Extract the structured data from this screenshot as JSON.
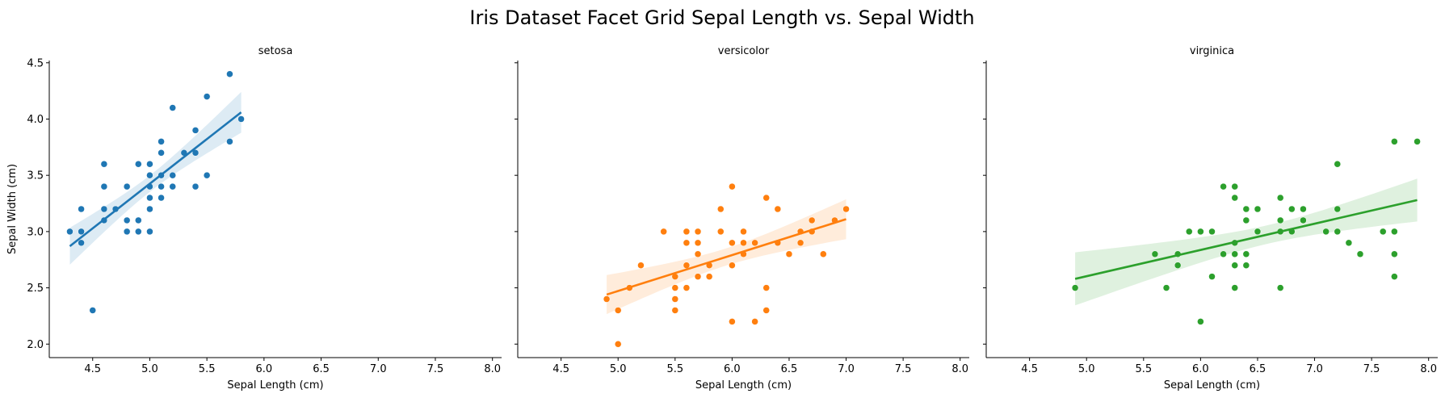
{
  "title": "Iris Dataset Facet Grid Sepal Length vs. Sepal Width",
  "chart_data": {
    "type": "scatter",
    "title": "Iris Dataset Facet Grid Sepal Length vs. Sepal Width",
    "xlabel": "Sepal Length (cm)",
    "ylabel": "Sepal Width (cm)",
    "xlim": [
      4.12,
      8.08
    ],
    "ylim": [
      1.88,
      4.52
    ],
    "x_ticks": [
      "4.5",
      "5.0",
      "5.5",
      "6.0",
      "6.5",
      "7.0",
      "7.5",
      "8.0"
    ],
    "y_ticks": [
      "2.0",
      "2.5",
      "3.0",
      "3.5",
      "4.0",
      "4.5"
    ],
    "grid": false,
    "facets": [
      {
        "name": "setosa",
        "color": "#1f77b4",
        "regression": {
          "x": [
            4.3,
            5.8
          ],
          "y": [
            2.87,
            4.06
          ]
        },
        "points": [
          [
            5.1,
            3.5
          ],
          [
            4.9,
            3.0
          ],
          [
            4.7,
            3.2
          ],
          [
            4.6,
            3.1
          ],
          [
            5.0,
            3.6
          ],
          [
            5.4,
            3.9
          ],
          [
            4.6,
            3.4
          ],
          [
            5.0,
            3.4
          ],
          [
            4.4,
            2.9
          ],
          [
            4.9,
            3.1
          ],
          [
            5.4,
            3.7
          ],
          [
            4.8,
            3.4
          ],
          [
            4.8,
            3.0
          ],
          [
            4.3,
            3.0
          ],
          [
            5.8,
            4.0
          ],
          [
            5.7,
            4.4
          ],
          [
            5.4,
            3.9
          ],
          [
            5.1,
            3.5
          ],
          [
            5.7,
            3.8
          ],
          [
            5.1,
            3.8
          ],
          [
            5.4,
            3.4
          ],
          [
            5.1,
            3.7
          ],
          [
            4.6,
            3.6
          ],
          [
            5.1,
            3.3
          ],
          [
            4.8,
            3.4
          ],
          [
            5.0,
            3.0
          ],
          [
            5.0,
            3.4
          ],
          [
            5.2,
            3.5
          ],
          [
            5.2,
            3.4
          ],
          [
            4.7,
            3.2
          ],
          [
            4.8,
            3.1
          ],
          [
            5.4,
            3.4
          ],
          [
            5.2,
            4.1
          ],
          [
            5.5,
            4.2
          ],
          [
            4.9,
            3.1
          ],
          [
            5.0,
            3.2
          ],
          [
            5.5,
            3.5
          ],
          [
            4.9,
            3.6
          ],
          [
            4.4,
            3.0
          ],
          [
            5.1,
            3.4
          ],
          [
            5.0,
            3.5
          ],
          [
            4.5,
            2.3
          ],
          [
            4.4,
            3.2
          ],
          [
            5.0,
            3.5
          ],
          [
            5.1,
            3.8
          ],
          [
            4.8,
            3.0
          ],
          [
            5.1,
            3.8
          ],
          [
            4.6,
            3.2
          ],
          [
            5.3,
            3.7
          ],
          [
            5.0,
            3.3
          ]
        ]
      },
      {
        "name": "versicolor",
        "color": "#ff7f0e",
        "regression": {
          "x": [
            4.9,
            7.0
          ],
          "y": [
            2.44,
            3.11
          ]
        },
        "points": [
          [
            7.0,
            3.2
          ],
          [
            6.4,
            3.2
          ],
          [
            6.9,
            3.1
          ],
          [
            5.5,
            2.3
          ],
          [
            6.5,
            2.8
          ],
          [
            5.7,
            2.8
          ],
          [
            6.3,
            3.3
          ],
          [
            4.9,
            2.4
          ],
          [
            6.6,
            2.9
          ],
          [
            5.2,
            2.7
          ],
          [
            5.0,
            2.0
          ],
          [
            5.9,
            3.0
          ],
          [
            6.0,
            2.2
          ],
          [
            6.1,
            2.9
          ],
          [
            5.6,
            2.9
          ],
          [
            6.7,
            3.1
          ],
          [
            5.6,
            3.0
          ],
          [
            5.8,
            2.7
          ],
          [
            6.2,
            2.2
          ],
          [
            5.6,
            2.5
          ],
          [
            5.9,
            3.2
          ],
          [
            6.1,
            2.8
          ],
          [
            6.3,
            2.5
          ],
          [
            6.1,
            2.8
          ],
          [
            6.4,
            2.9
          ],
          [
            6.6,
            3.0
          ],
          [
            6.8,
            2.8
          ],
          [
            6.7,
            3.0
          ],
          [
            6.0,
            2.9
          ],
          [
            5.7,
            2.6
          ],
          [
            5.5,
            2.4
          ],
          [
            5.5,
            2.4
          ],
          [
            5.8,
            2.7
          ],
          [
            6.0,
            2.7
          ],
          [
            5.4,
            3.0
          ],
          [
            6.0,
            3.4
          ],
          [
            6.7,
            3.1
          ],
          [
            6.3,
            2.3
          ],
          [
            5.6,
            3.0
          ],
          [
            5.5,
            2.5
          ],
          [
            5.5,
            2.6
          ],
          [
            6.1,
            3.0
          ],
          [
            5.8,
            2.6
          ],
          [
            5.0,
            2.3
          ],
          [
            5.6,
            2.7
          ],
          [
            5.7,
            3.0
          ],
          [
            5.7,
            2.9
          ],
          [
            6.2,
            2.9
          ],
          [
            5.1,
            2.5
          ],
          [
            5.7,
            2.8
          ]
        ]
      },
      {
        "name": "virginica",
        "color": "#2ca02c",
        "regression": {
          "x": [
            4.9,
            7.9
          ],
          "y": [
            2.58,
            3.28
          ]
        },
        "points": [
          [
            6.3,
            3.3
          ],
          [
            5.8,
            2.7
          ],
          [
            7.1,
            3.0
          ],
          [
            6.3,
            2.9
          ],
          [
            6.5,
            3.0
          ],
          [
            7.6,
            3.0
          ],
          [
            4.9,
            2.5
          ],
          [
            7.3,
            2.9
          ],
          [
            6.7,
            2.5
          ],
          [
            7.2,
            3.6
          ],
          [
            6.5,
            3.2
          ],
          [
            6.4,
            2.7
          ],
          [
            6.8,
            3.0
          ],
          [
            5.7,
            2.5
          ],
          [
            5.8,
            2.8
          ],
          [
            6.4,
            3.2
          ],
          [
            6.5,
            3.0
          ],
          [
            7.7,
            3.8
          ],
          [
            7.7,
            2.6
          ],
          [
            6.0,
            2.2
          ],
          [
            6.9,
            3.2
          ],
          [
            5.6,
            2.8
          ],
          [
            7.7,
            2.8
          ],
          [
            6.3,
            2.7
          ],
          [
            6.7,
            3.3
          ],
          [
            7.2,
            3.2
          ],
          [
            6.2,
            2.8
          ],
          [
            6.1,
            3.0
          ],
          [
            6.4,
            2.8
          ],
          [
            7.2,
            3.0
          ],
          [
            7.4,
            2.8
          ],
          [
            7.9,
            3.8
          ],
          [
            6.4,
            2.8
          ],
          [
            6.3,
            2.8
          ],
          [
            6.1,
            2.6
          ],
          [
            7.7,
            3.0
          ],
          [
            6.3,
            3.4
          ],
          [
            6.4,
            3.1
          ],
          [
            6.0,
            3.0
          ],
          [
            6.9,
            3.1
          ],
          [
            6.7,
            3.1
          ],
          [
            6.9,
            3.1
          ],
          [
            5.8,
            2.7
          ],
          [
            6.8,
            3.2
          ],
          [
            6.7,
            3.3
          ],
          [
            6.7,
            3.0
          ],
          [
            6.3,
            2.5
          ],
          [
            6.5,
            3.0
          ],
          [
            6.2,
            3.4
          ],
          [
            5.9,
            3.0
          ]
        ]
      }
    ]
  }
}
